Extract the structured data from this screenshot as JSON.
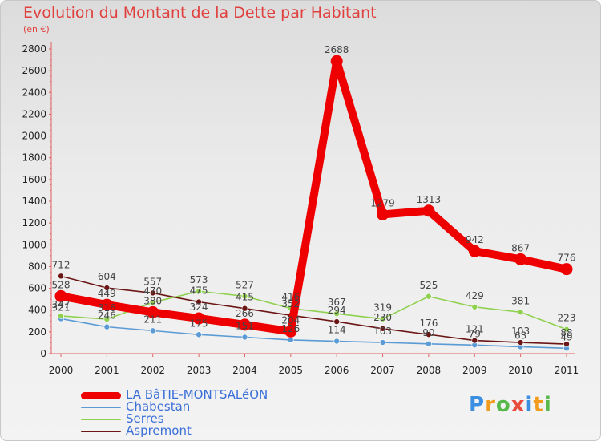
{
  "chart_data": {
    "type": "line",
    "title": "Evolution du Montant de la Dette par Habitant",
    "subtitle": "(en €)",
    "xlabel": "",
    "ylabel": "",
    "categories": [
      "2000",
      "2001",
      "2002",
      "2003",
      "2004",
      "2005",
      "2006",
      "2007",
      "2008",
      "2009",
      "2010",
      "2011"
    ],
    "ylim": [
      0,
      2800
    ],
    "yticks": [
      0,
      200,
      400,
      600,
      800,
      1000,
      1200,
      1400,
      1600,
      1800,
      2000,
      2200,
      2400,
      2600,
      2800
    ],
    "grid": false,
    "legend_position": "bottom-left",
    "series": [
      {
        "name": "Chabestan",
        "color": "#5b9bd5",
        "values": [
          321,
          246,
          211,
          175,
          151,
          126,
          114,
          103,
          90,
          79,
          63,
          49
        ]
      },
      {
        "name": "Serres",
        "color": "#8fd14f",
        "values": [
          347,
          316,
          470,
          573,
          527,
          416,
          367,
          319,
          525,
          429,
          381,
          223
        ]
      },
      {
        "name": "Aspremont",
        "color": "#6b1515",
        "values": [
          712,
          604,
          557,
          475,
          415,
          352,
          294,
          230,
          176,
          121,
          103,
          88
        ]
      },
      {
        "name": "LA BâTIE-MONTSALéON",
        "color": "#ee0000",
        "values": [
          528,
          449,
          380,
          324,
          266,
          204,
          2688,
          1279,
          1313,
          942,
          867,
          776
        ]
      }
    ]
  },
  "legend": [
    {
      "name": "LA BâTIE-MONTSALéON",
      "color": "#ee0000"
    },
    {
      "name": "Chabestan",
      "color": "#5b9bd5"
    },
    {
      "name": "Serres",
      "color": "#8fd14f"
    },
    {
      "name": "Aspremont",
      "color": "#6b1515"
    }
  ],
  "logo": {
    "text": "Proxiti",
    "colors": [
      "#3b8ee0",
      "#f29b1d",
      "#56b94a",
      "#e84c3d",
      "#3b8ee0",
      "#f29b1d",
      "#56b94a"
    ]
  }
}
